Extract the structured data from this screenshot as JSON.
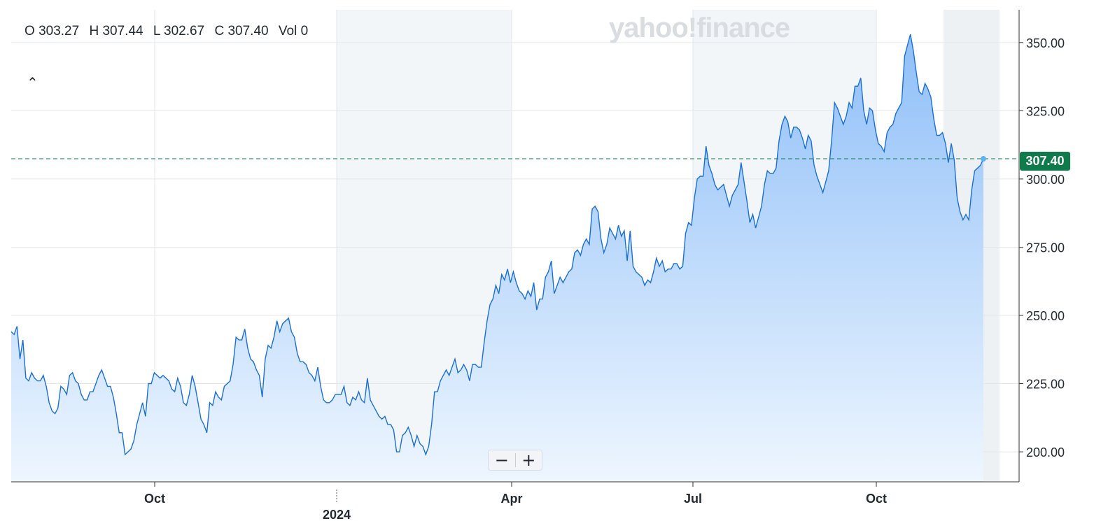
{
  "ohlc": {
    "open_label": "O",
    "open": "303.27",
    "high_label": "H",
    "high": "307.44",
    "low_label": "L",
    "low": "302.67",
    "close_label": "C",
    "close": "307.40",
    "vol_label": "Vol",
    "vol": "0"
  },
  "collapse_icon": "chevron-up-icon",
  "watermark": "yahoo!finance",
  "zoom": {
    "minus": "−",
    "plus": "+"
  },
  "current_price": "307.40",
  "colors": {
    "line": "#1a6fd8",
    "fill_top": "#8fbff8",
    "fill_bottom": "#eef6ff",
    "dash": "#0f7b4a",
    "badge": "#0f7b4a"
  },
  "chart_data": {
    "type": "area",
    "x_ticks": [
      "Oct",
      "Apr",
      "Jul",
      "Oct"
    ],
    "x_secondary_tick": "2024",
    "y_ticks": [
      "200.00",
      "225.00",
      "250.00",
      "275.00",
      "300.00",
      "325.00",
      "350.00"
    ],
    "ylim": [
      189,
      362
    ],
    "grid": true,
    "reference_line": 307.4,
    "series": [
      {
        "values": [
          244,
          243,
          246,
          234,
          241,
          227,
          226,
          229,
          227,
          226,
          226,
          228,
          224,
          218,
          215,
          214,
          216,
          224,
          223,
          221,
          228,
          229,
          226,
          225,
          221,
          219,
          219,
          222,
          222,
          225,
          228,
          230,
          227,
          224,
          224,
          220,
          214,
          207,
          207,
          199,
          200,
          201,
          204,
          210,
          214,
          218,
          213,
          225,
          225,
          229,
          228,
          227,
          228,
          227,
          226,
          223,
          222,
          227,
          224,
          218,
          217,
          221,
          228,
          224,
          218,
          212,
          210,
          207,
          218,
          217,
          222,
          220,
          219,
          224,
          225,
          226,
          232,
          242,
          241,
          241,
          245,
          238,
          234,
          233,
          230,
          228,
          220,
          234,
          239,
          238,
          242,
          248,
          244,
          247,
          248,
          249,
          244,
          242,
          236,
          233,
          233,
          232,
          229,
          228,
          226,
          231,
          224,
          219,
          218,
          218,
          219,
          221,
          221,
          221,
          224,
          218,
          217,
          220,
          219,
          222,
          219,
          218,
          227,
          219,
          217,
          215,
          213,
          212,
          213,
          210,
          210,
          208,
          200,
          200,
          206,
          207,
          209,
          206,
          202,
          206,
          203,
          202,
          199,
          202,
          210,
          222,
          222,
          226,
          228,
          230,
          228,
          231,
          234,
          229,
          230,
          232,
          230,
          226,
          232,
          232,
          231,
          231,
          240,
          248,
          254,
          256,
          261,
          258,
          265,
          263,
          267,
          262,
          266,
          262,
          259,
          258,
          256,
          259,
          257,
          262,
          252,
          256,
          256,
          264,
          266,
          270,
          258,
          261,
          264,
          262,
          264,
          266,
          267,
          273,
          274,
          272,
          276,
          278,
          276,
          289,
          290,
          288,
          278,
          273,
          276,
          282,
          280,
          278,
          283,
          279,
          281,
          270,
          281,
          268,
          266,
          265,
          264,
          261,
          263,
          262,
          266,
          271,
          268,
          270,
          266,
          267,
          267,
          269,
          269,
          267,
          268,
          280,
          284,
          283,
          293,
          300,
          301,
          301,
          312,
          305,
          302,
          298,
          296,
          297,
          298,
          294,
          290,
          294,
          296,
          298,
          306,
          299,
          292,
          284,
          287,
          282,
          286,
          290,
          298,
          303,
          302,
          302,
          304,
          314,
          320,
          323,
          321,
          315,
          319,
          319,
          318,
          315,
          311,
          316,
          314,
          305,
          301,
          298,
          295,
          299,
          303,
          314,
          328,
          326,
          323,
          320,
          323,
          328,
          326,
          334,
          334,
          337,
          325,
          320,
          326,
          325,
          318,
          313,
          312,
          310,
          317,
          319,
          320,
          324,
          326,
          328,
          345,
          349,
          353,
          347,
          339,
          332,
          331,
          335,
          333,
          330,
          322,
          316,
          316,
          317,
          313,
          306,
          313,
          307,
          293,
          288,
          285,
          287,
          285,
          296,
          303,
          304,
          305,
          307.4
        ]
      }
    ]
  }
}
